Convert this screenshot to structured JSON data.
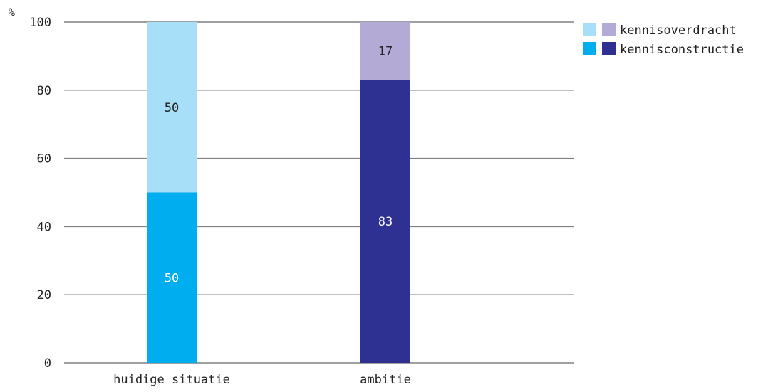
{
  "chart_data": {
    "type": "bar",
    "stacked": true,
    "unit": "%",
    "categories": [
      "huidige situatie",
      "ambitie"
    ],
    "series": [
      {
        "name": "kennisconstructie",
        "values": [
          50,
          83
        ],
        "colors": [
          "#00aeef",
          "#2e3192"
        ],
        "label_colors": [
          "#ffffff",
          "#ffffff"
        ]
      },
      {
        "name": "kennisoverdracht",
        "values": [
          50,
          17
        ],
        "colors": [
          "#a8dff8",
          "#b3aad6"
        ],
        "label_colors": [
          "#222222",
          "#222222"
        ]
      }
    ],
    "legend_order": [
      1,
      0
    ],
    "legend_placement": "top-right",
    "ylim": [
      0,
      100
    ],
    "yticks": [
      0,
      20,
      40,
      60,
      80,
      100
    ],
    "grid": true,
    "grid_color": "#808080"
  }
}
